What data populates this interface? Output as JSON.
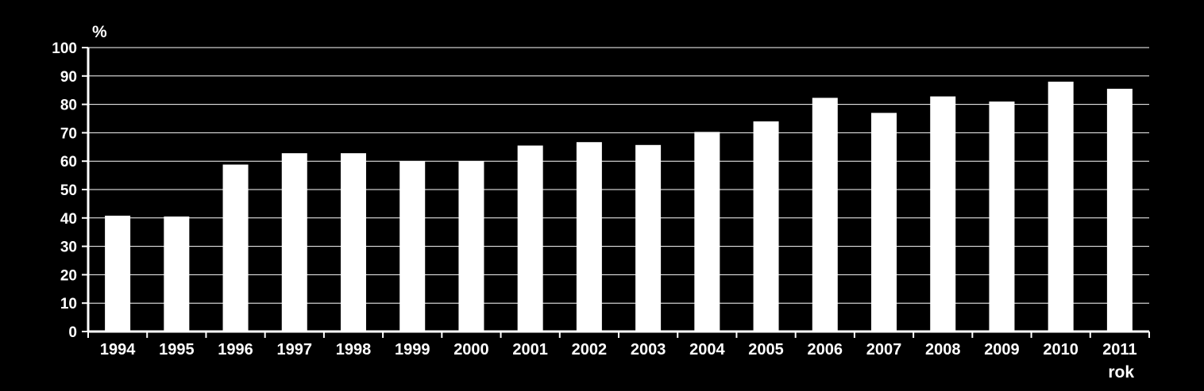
{
  "chart_data": {
    "type": "bar",
    "title": "",
    "ylabel": "%",
    "xlabel": "rok",
    "categories": [
      "1994",
      "1995",
      "1996",
      "1997",
      "1998",
      "1999",
      "2000",
      "2001",
      "2002",
      "2003",
      "2004",
      "2005",
      "2006",
      "2007",
      "2008",
      "2009",
      "2010",
      "2011"
    ],
    "values": [
      40.8,
      40.5,
      58.8,
      62.8,
      62.8,
      60.0,
      60.0,
      65.5,
      66.7,
      65.7,
      70.3,
      74.0,
      82.3,
      77.0,
      82.8,
      81.0,
      88.0,
      85.5
    ],
    "ylim": [
      0,
      100
    ],
    "yticks": [
      0,
      10,
      20,
      30,
      40,
      50,
      60,
      70,
      80,
      90,
      100
    ],
    "grid": true,
    "legend": "none",
    "colors": {
      "background": "#000000",
      "bar": "#ffffff",
      "axis": "#ffffff",
      "grid": "#ffffff",
      "text": "#ffffff"
    }
  }
}
